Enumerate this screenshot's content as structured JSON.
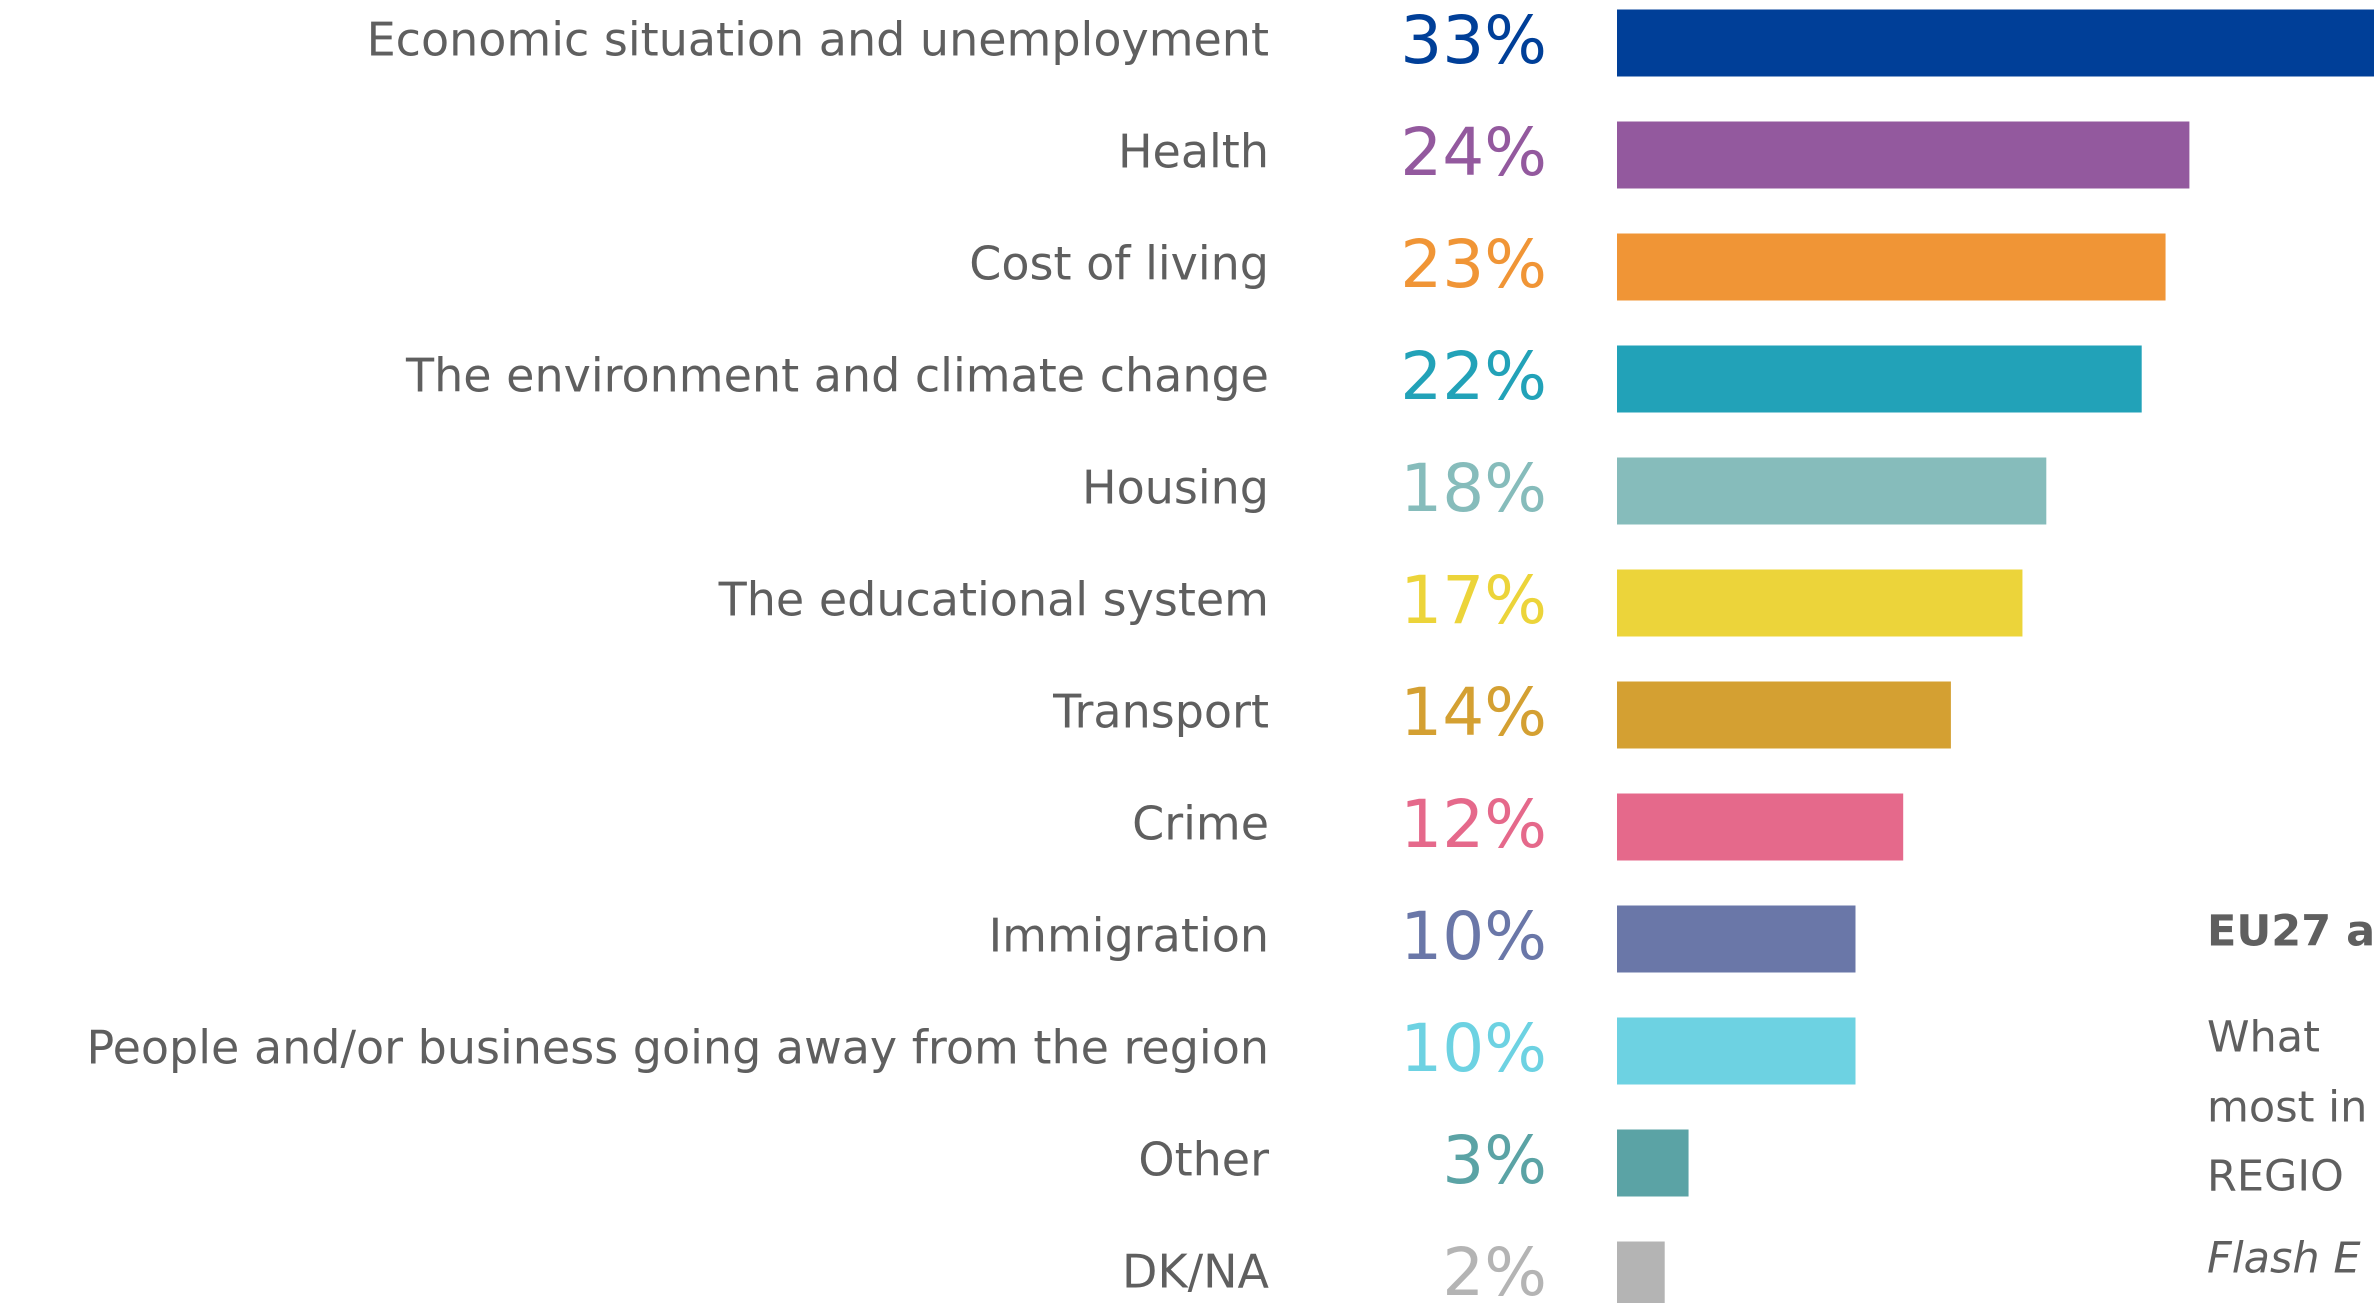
{
  "chart_data": {
    "type": "bar",
    "orientation": "horizontal",
    "categories": [
      "Economic situation and unemployment",
      "Health",
      "Cost of living",
      "The environment and climate change",
      "Housing",
      "The educational system",
      "Transport",
      "Crime",
      "Immigration",
      "People and/or business going away from the region",
      "Other",
      "DK/NA"
    ],
    "values": [
      33,
      24,
      23,
      22,
      18,
      17,
      14,
      12,
      10,
      10,
      3,
      2
    ],
    "value_labels": [
      "33%",
      "24%",
      "23%",
      "22%",
      "18%",
      "17%",
      "14%",
      "12%",
      "10%",
      "10%",
      "3%",
      "2%"
    ],
    "colors": [
      "#003f98",
      "#93599e",
      "#f09536",
      "#22a2b8",
      "#86bcbb",
      "#ecd43a",
      "#d4a032",
      "#e5698b",
      "#6a77a8",
      "#6dd2e2",
      "#5ba3a5",
      "#b4b4b4"
    ],
    "annotations": [
      "EU27 a",
      "What",
      "most in",
      "REGIO",
      "Flash E"
    ]
  }
}
